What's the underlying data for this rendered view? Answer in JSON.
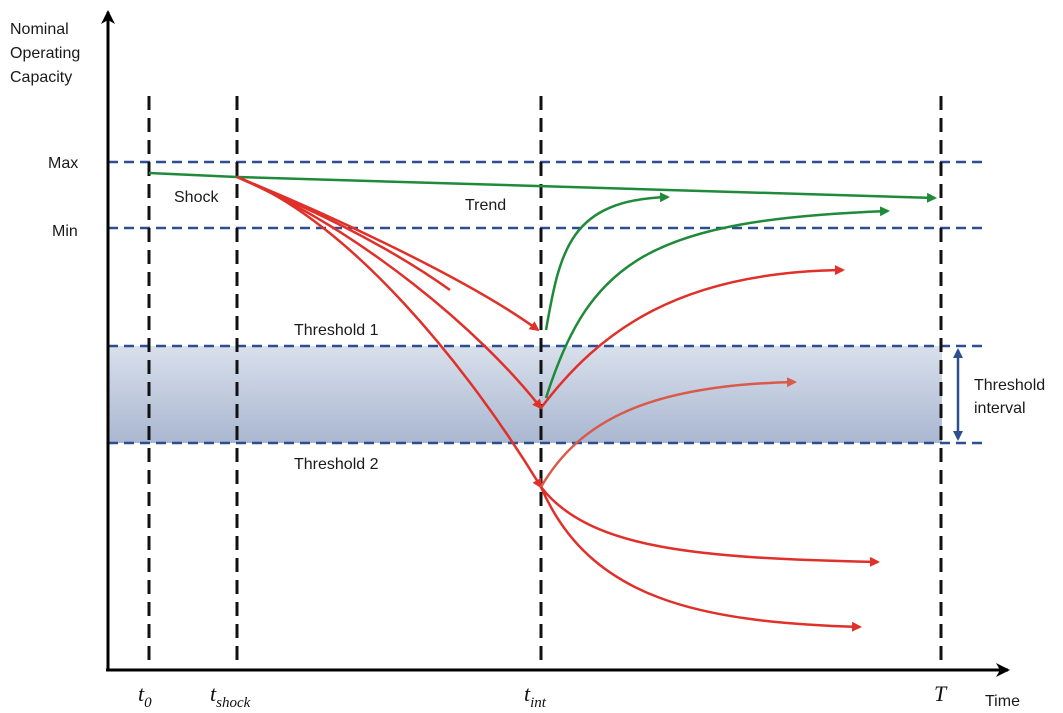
{
  "axes": {
    "y_label_lines": [
      "Nominal",
      "Operating",
      "Capacity"
    ],
    "x_label": "Time"
  },
  "levels": {
    "max": "Max",
    "min": "Min",
    "threshold1": "Threshold 1",
    "threshold2": "Threshold 2"
  },
  "annotations": {
    "shock": "Shock",
    "trend": "Trend",
    "interval_lines": [
      "Threshold",
      "interval"
    ]
  },
  "time_marks": {
    "t0": {
      "base": "t",
      "sub": "0"
    },
    "tshock": {
      "base": "t",
      "sub": "shock"
    },
    "tint": {
      "base": "t",
      "sub": "int"
    },
    "T": {
      "base": "T",
      "sub": ""
    }
  },
  "colors": {
    "recovery": "#1f8a3a",
    "degradation": "#e0302a",
    "threshold_band": "#b9c5db",
    "level_lines": "#2e4f8f",
    "interval_arrow": "#2e4f8f"
  }
}
